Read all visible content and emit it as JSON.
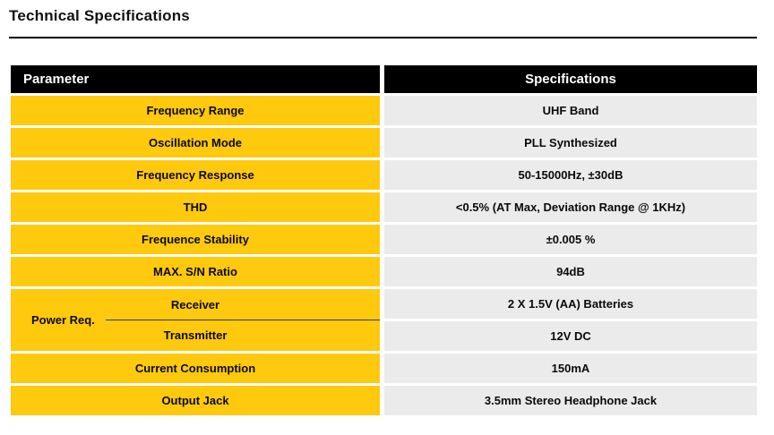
{
  "page_title": "Technical Specifications",
  "colors": {
    "accent_yellow": "#FFC90E",
    "spec_gray": "#EBEBEB",
    "header_black": "#000000"
  },
  "table": {
    "headers": {
      "parameter": "Parameter",
      "specifications": "Specifications"
    },
    "group_label": "Power Req.",
    "rows": [
      {
        "parameter": "Frequency Range",
        "specification": "UHF Band"
      },
      {
        "parameter": "Oscillation Mode",
        "specification": "PLL Synthesized"
      },
      {
        "parameter": "Frequency Response",
        "specification": "50-15000Hz, ±30dB"
      },
      {
        "parameter": "THD",
        "specification": "<0.5% (AT Max, Deviation Range @ 1KHz)"
      },
      {
        "parameter": "Frequence Stability",
        "specification": "±0.005 %"
      },
      {
        "parameter": "MAX. S/N Ratio",
        "specification": "94dB"
      },
      {
        "parameter": "Receiver",
        "specification": "2 X 1.5V (AA) Batteries",
        "group": "Power Req."
      },
      {
        "parameter": "Transmitter",
        "specification": "12V DC",
        "group": "Power Req."
      },
      {
        "parameter": "Current Consumption",
        "specification": "150mA"
      },
      {
        "parameter": "Output Jack",
        "specification": "3.5mm Stereo Headphone Jack"
      }
    ]
  }
}
